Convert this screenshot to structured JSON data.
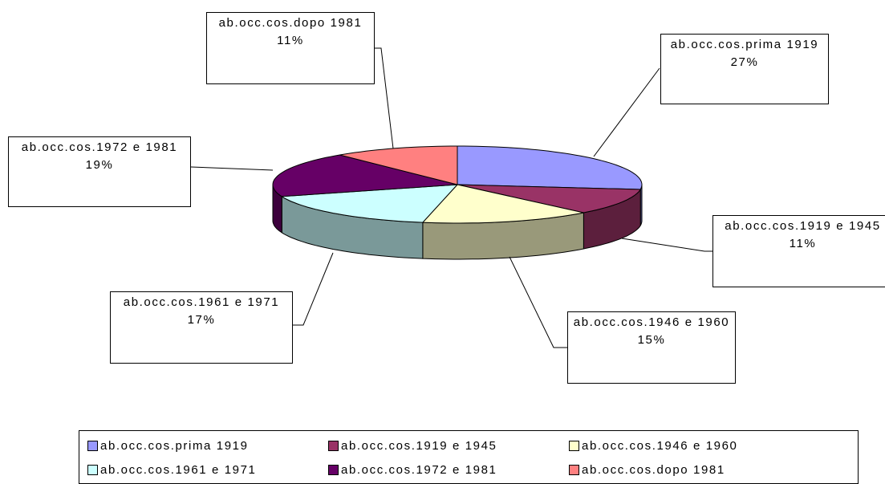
{
  "chart_data": {
    "type": "pie",
    "categories": [
      "ab.occ.cos.prima 1919",
      "ab.occ.cos.1919 e 1945",
      "ab.occ.cos.1946 e 1960",
      "ab.occ.cos.1961 e 1971",
      "ab.occ.cos.1972 e 1981",
      "ab.occ.cos.dopo 1981"
    ],
    "values": [
      27,
      11,
      15,
      17,
      19,
      11
    ],
    "value_labels": [
      "27%",
      "11%",
      "15%",
      "17%",
      "19%",
      "11%"
    ],
    "colors": [
      "#9999ff",
      "#993366",
      "#ffffcc",
      "#ccffff",
      "#660066",
      "#ff8080"
    ],
    "legend": "bottom"
  }
}
